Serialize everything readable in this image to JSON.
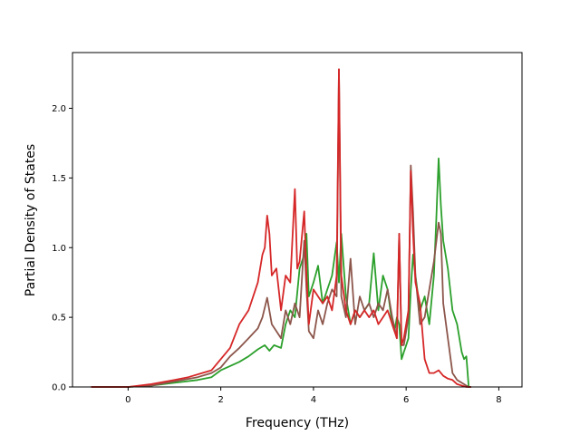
{
  "chart_data": {
    "type": "line",
    "xlabel": "Frequency (THz)",
    "ylabel": "Partial Density of States",
    "xlim": [
      -1.2,
      8.5
    ],
    "ylim": [
      0,
      2.4
    ],
    "x_ticks": [
      "0",
      "2",
      "4",
      "6",
      "8"
    ],
    "y_ticks": [
      "0.0",
      "0.5",
      "1.0",
      "1.5",
      "2.0"
    ],
    "grid": false,
    "series": [
      {
        "color": "#2ca02c",
        "x": [
          -0.8,
          0,
          0.5,
          1.0,
          1.5,
          1.8,
          2.0,
          2.2,
          2.4,
          2.6,
          2.8,
          2.95,
          3.05,
          3.15,
          3.3,
          3.4,
          3.5,
          3.6,
          3.7,
          3.8,
          3.85,
          3.9,
          4.0,
          4.1,
          4.2,
          4.3,
          4.4,
          4.5,
          4.55,
          4.6,
          4.7,
          4.8,
          4.9,
          5.0,
          5.1,
          5.2,
          5.3,
          5.4,
          5.5,
          5.6,
          5.7,
          5.75,
          5.8,
          5.85,
          5.9,
          5.95,
          6.0,
          6.05,
          6.1,
          6.15,
          6.2,
          6.3,
          6.4,
          6.5,
          6.6,
          6.65,
          6.7,
          6.75,
          6.8,
          6.9,
          7.0,
          7.1,
          7.2,
          7.25,
          7.3,
          7.35,
          7.4
        ],
        "y": [
          0.0,
          0.0,
          0.01,
          0.03,
          0.05,
          0.07,
          0.12,
          0.15,
          0.18,
          0.22,
          0.27,
          0.3,
          0.26,
          0.3,
          0.28,
          0.45,
          0.55,
          0.5,
          0.85,
          0.95,
          1.1,
          0.65,
          0.75,
          0.87,
          0.6,
          0.7,
          0.8,
          1.04,
          0.75,
          1.1,
          0.65,
          0.45,
          0.55,
          0.5,
          0.55,
          0.6,
          0.96,
          0.55,
          0.8,
          0.7,
          0.45,
          0.4,
          0.5,
          0.45,
          0.2,
          0.25,
          0.3,
          0.35,
          0.7,
          0.95,
          0.8,
          0.55,
          0.65,
          0.45,
          0.8,
          1.2,
          1.64,
          1.3,
          1.05,
          0.85,
          0.55,
          0.45,
          0.25,
          0.2,
          0.22,
          0.0,
          0.0
        ]
      },
      {
        "color": "#8c564b",
        "x": [
          -0.8,
          0,
          0.5,
          1.0,
          1.5,
          1.8,
          2.0,
          2.2,
          2.4,
          2.6,
          2.8,
          2.9,
          3.0,
          3.1,
          3.2,
          3.3,
          3.4,
          3.5,
          3.6,
          3.7,
          3.8,
          3.85,
          3.9,
          4.0,
          4.1,
          4.2,
          4.3,
          4.4,
          4.5,
          4.55,
          4.6,
          4.7,
          4.8,
          4.9,
          5.0,
          5.1,
          5.2,
          5.3,
          5.4,
          5.5,
          5.6,
          5.7,
          5.8,
          5.85,
          5.9,
          5.95,
          6.0,
          6.05,
          6.1,
          6.15,
          6.2,
          6.3,
          6.4,
          6.5,
          6.6,
          6.7,
          6.75,
          6.8,
          6.9,
          7.0,
          7.1,
          7.2,
          7.3,
          7.35,
          7.4
        ],
        "y": [
          0.0,
          0.0,
          0.01,
          0.04,
          0.07,
          0.1,
          0.14,
          0.22,
          0.28,
          0.35,
          0.42,
          0.5,
          0.64,
          0.45,
          0.4,
          0.35,
          0.55,
          0.45,
          0.6,
          0.5,
          1.05,
          0.7,
          0.4,
          0.35,
          0.55,
          0.45,
          0.6,
          0.7,
          0.65,
          2.28,
          0.65,
          0.5,
          0.92,
          0.45,
          0.65,
          0.55,
          0.6,
          0.5,
          0.6,
          0.55,
          0.7,
          0.5,
          0.35,
          1.1,
          0.3,
          0.3,
          0.4,
          0.5,
          1.59,
          1.25,
          0.8,
          0.45,
          0.5,
          0.7,
          0.9,
          1.18,
          1.1,
          0.6,
          0.35,
          0.1,
          0.05,
          0.03,
          0.01,
          0.0,
          0.0
        ]
      },
      {
        "color": "#d62728",
        "x": [
          -0.8,
          0,
          0.5,
          1.0,
          1.3,
          1.6,
          1.8,
          2.0,
          2.2,
          2.4,
          2.6,
          2.8,
          2.9,
          2.95,
          3.0,
          3.05,
          3.1,
          3.2,
          3.3,
          3.4,
          3.5,
          3.6,
          3.65,
          3.7,
          3.8,
          3.85,
          3.9,
          4.0,
          4.1,
          4.2,
          4.3,
          4.4,
          4.5,
          4.55,
          4.6,
          4.7,
          4.8,
          4.9,
          5.0,
          5.1,
          5.2,
          5.3,
          5.4,
          5.5,
          5.6,
          5.7,
          5.8,
          5.85,
          5.9,
          5.95,
          6.0,
          6.05,
          6.1,
          6.15,
          6.2,
          6.3,
          6.4,
          6.5,
          6.6,
          6.7,
          6.8,
          6.9,
          7.0,
          7.1,
          7.2,
          7.3,
          7.35,
          7.4
        ],
        "y": [
          0.0,
          0.0,
          0.02,
          0.05,
          0.07,
          0.1,
          0.12,
          0.2,
          0.28,
          0.45,
          0.55,
          0.75,
          0.95,
          1.0,
          1.23,
          1.1,
          0.8,
          0.85,
          0.55,
          0.8,
          0.75,
          1.42,
          0.85,
          0.9,
          1.26,
          0.8,
          0.45,
          0.7,
          0.65,
          0.6,
          0.65,
          0.55,
          0.8,
          2.28,
          0.8,
          0.55,
          0.45,
          0.55,
          0.5,
          0.55,
          0.5,
          0.55,
          0.45,
          0.5,
          0.55,
          0.45,
          0.35,
          1.1,
          0.3,
          0.35,
          0.45,
          0.55,
          1.55,
          1.1,
          0.75,
          0.6,
          0.2,
          0.1,
          0.1,
          0.12,
          0.08,
          0.06,
          0.05,
          0.02,
          0.01,
          0.0,
          0.0,
          0.0
        ]
      }
    ]
  }
}
